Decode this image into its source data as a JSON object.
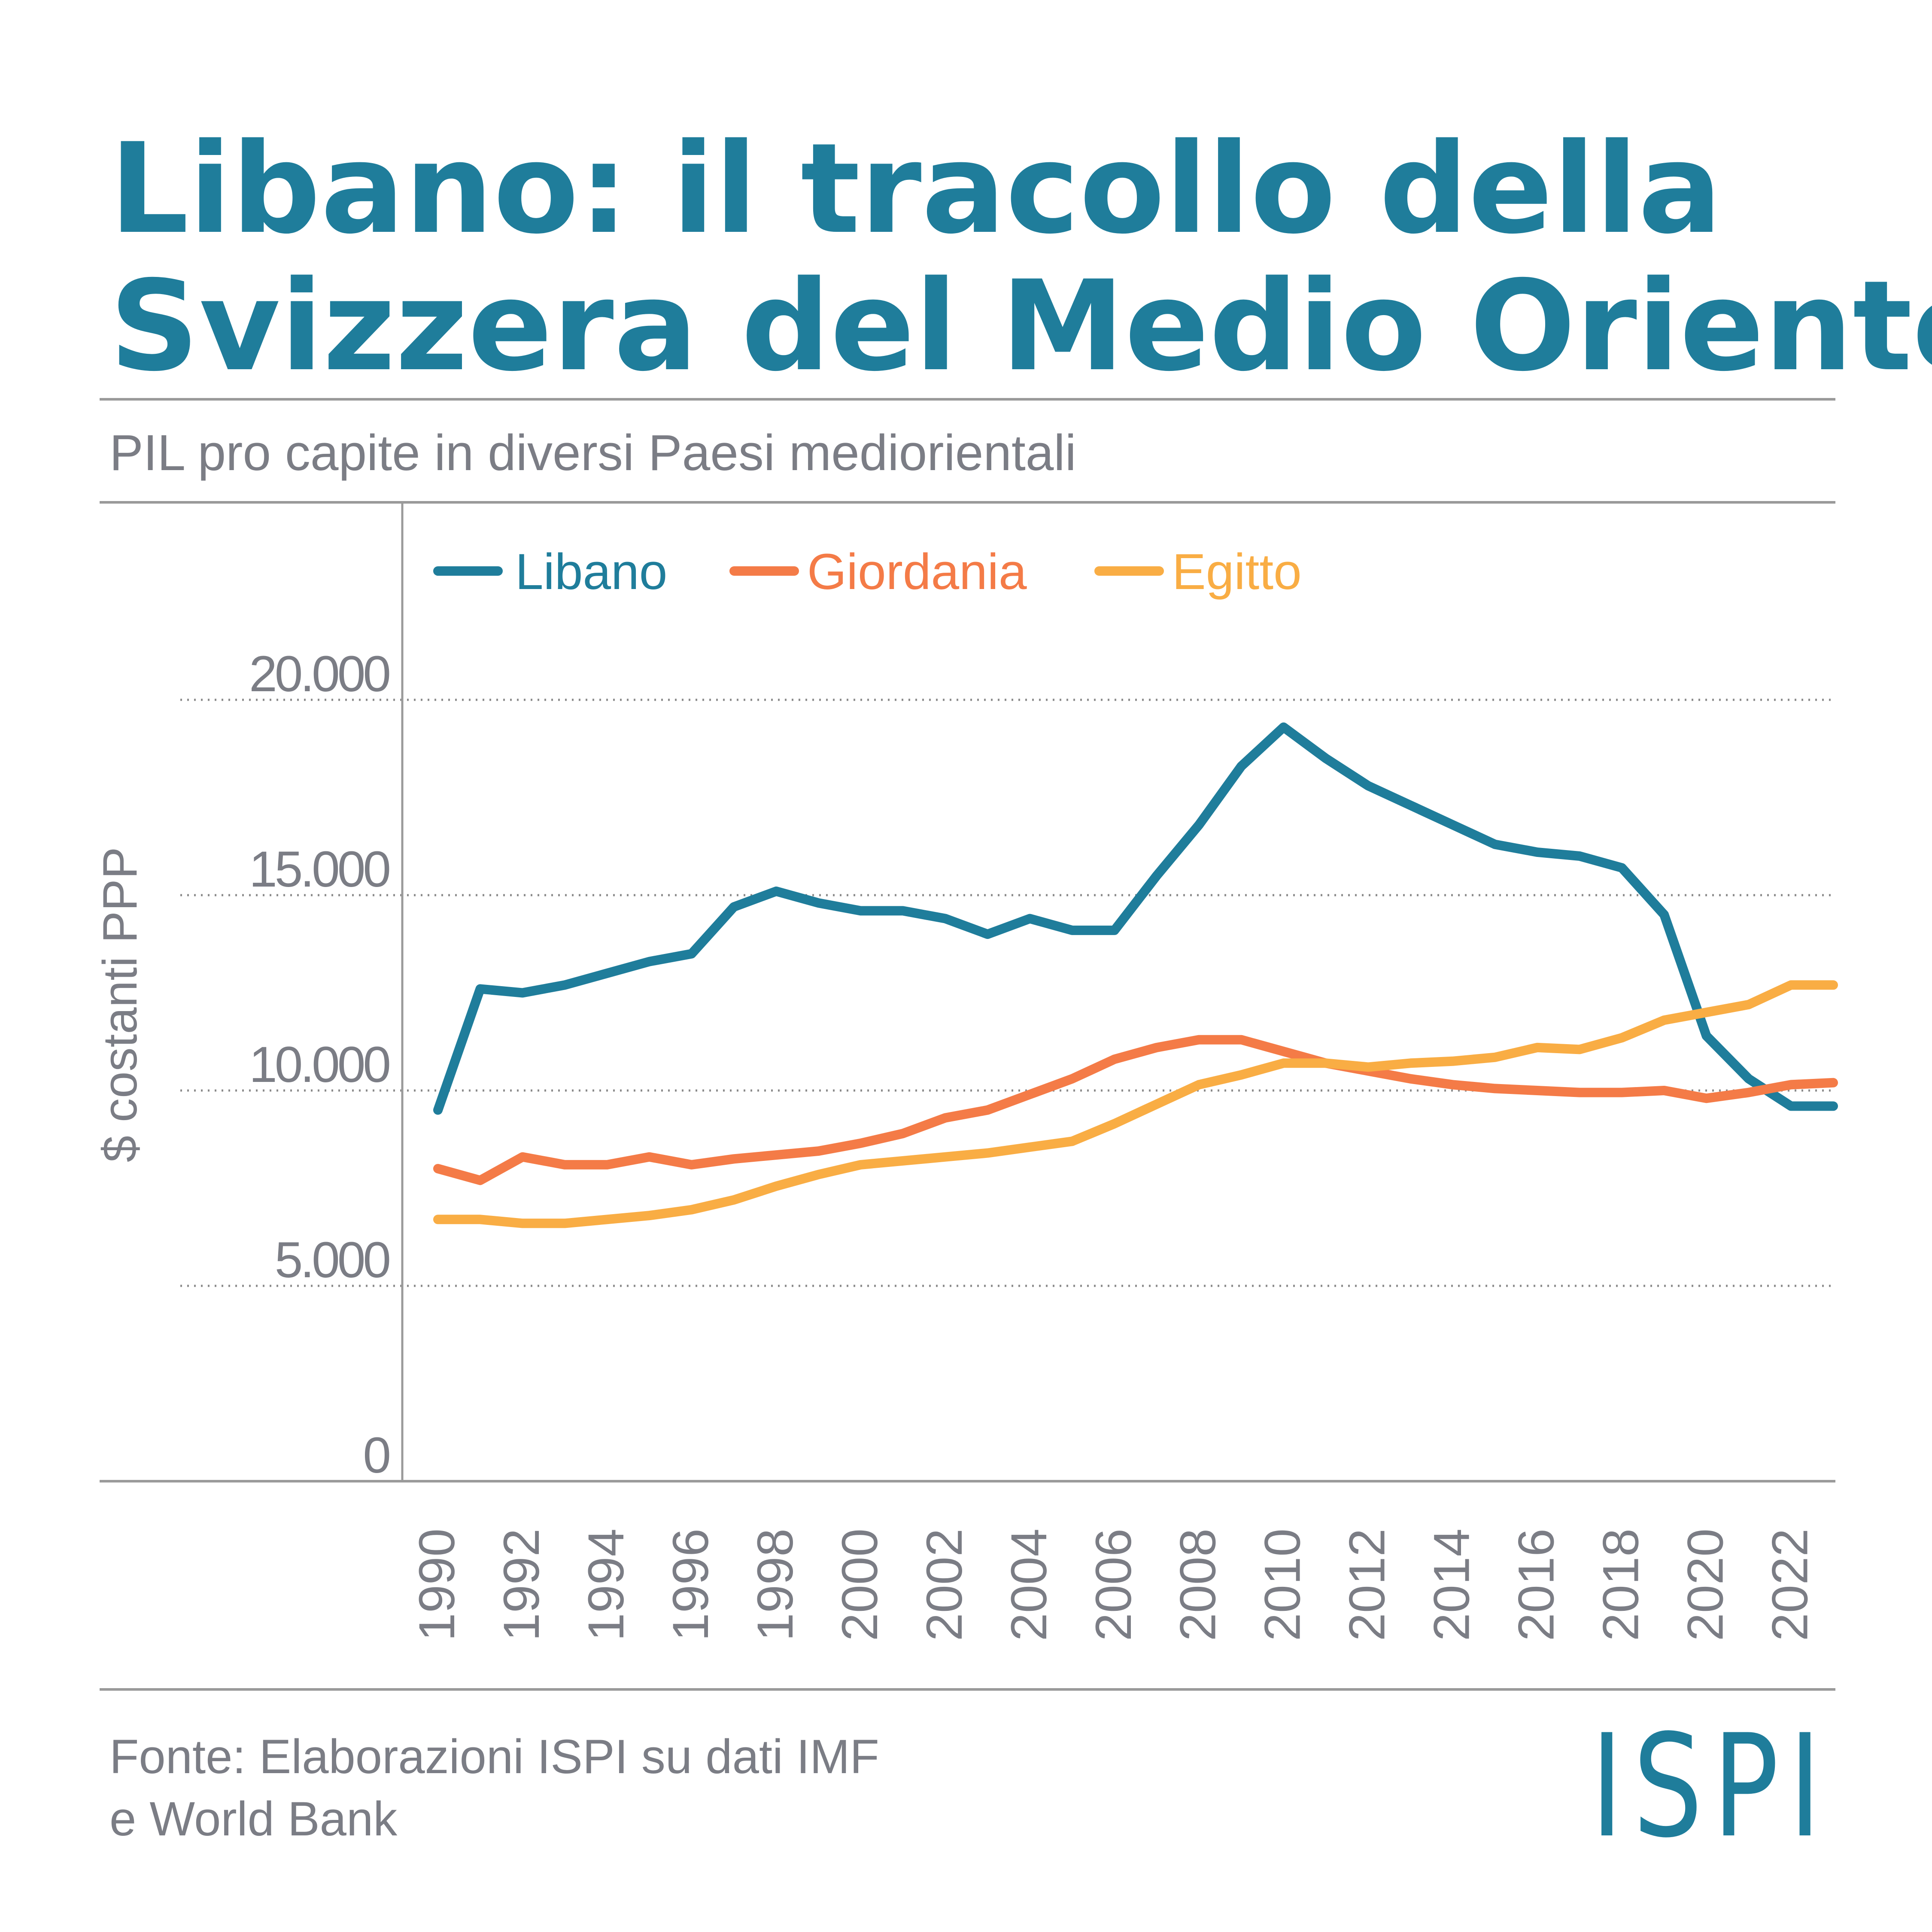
{
  "title_line1": "Libano: il tracollo della",
  "title_line2": "Svizzera del Medio Oriente",
  "subtitle": "PIL pro capite in diversi Paesi mediorientali",
  "source_line1": "Fonte: Elaborazioni ISPI su dati IMF",
  "source_line2": "e World Bank",
  "logo": "ISPI",
  "colors": {
    "title": "#1f7d9b",
    "text": "#7b7d85",
    "rule": "#9a9a9a",
    "grid": "#8a8a8a"
  },
  "chart_data": {
    "type": "line",
    "title": "PIL pro capite in diversi Paesi mediorientali",
    "xlabel": "",
    "ylabel": "$ costanti PPP",
    "ylim": [
      0,
      20000
    ],
    "xlim": [
      1990,
      2023
    ],
    "y_ticks": [
      0,
      5000,
      10000,
      15000,
      20000
    ],
    "y_tick_labels": [
      "0",
      "5.000",
      "10.000",
      "15.000",
      "20.000"
    ],
    "x_ticks": [
      1990,
      1992,
      1994,
      1996,
      1998,
      2000,
      2002,
      2004,
      2006,
      2008,
      2010,
      2012,
      2014,
      2016,
      2018,
      2020,
      2022
    ],
    "x_tick_labels": [
      "1990",
      "1992",
      "1994",
      "1996",
      "1998",
      "2000",
      "2002",
      "2004",
      "2006",
      "2008",
      "2010",
      "2012",
      "2014",
      "2016",
      "2018",
      "2020",
      "2022"
    ],
    "grid": "dotted horizontal",
    "legend_position": "top-left",
    "x": [
      1990,
      1991,
      1992,
      1993,
      1994,
      1995,
      1996,
      1997,
      1998,
      1999,
      2000,
      2001,
      2002,
      2003,
      2004,
      2005,
      2006,
      2007,
      2008,
      2009,
      2010,
      2011,
      2012,
      2013,
      2014,
      2015,
      2016,
      2017,
      2018,
      2019,
      2020,
      2021,
      2022,
      2023
    ],
    "series": [
      {
        "name": "Libano",
        "color": "#1f7d9b",
        "values": [
          9500,
          12600,
          12500,
          12700,
          13000,
          13300,
          13500,
          14700,
          15100,
          14800,
          14600,
          14600,
          14400,
          14000,
          14400,
          14100,
          14100,
          15500,
          16800,
          18300,
          19300,
          18500,
          17800,
          17300,
          16800,
          16300,
          16100,
          16000,
          15700,
          14500,
          11400,
          10300,
          9600,
          9600
        ]
      },
      {
        "name": "Giordania",
        "color": "#f47b47",
        "values": [
          8000,
          7700,
          8300,
          8100,
          8100,
          8300,
          8100,
          8250,
          8350,
          8450,
          8650,
          8900,
          9300,
          9500,
          9900,
          10300,
          10800,
          11100,
          11300,
          11300,
          11000,
          10700,
          10500,
          10300,
          10150,
          10050,
          10000,
          9950,
          9950,
          10000,
          9800,
          9950,
          10150,
          10200
        ]
      },
      {
        "name": "Egitto",
        "color": "#f9ad44",
        "values": [
          6700,
          6700,
          6600,
          6600,
          6700,
          6800,
          6950,
          7200,
          7550,
          7850,
          8100,
          8200,
          8300,
          8400,
          8550,
          8700,
          9150,
          9650,
          10150,
          10400,
          10700,
          10700,
          10600,
          10700,
          10750,
          10850,
          11100,
          11050,
          11350,
          11800,
          12000,
          12200,
          12700,
          12700
        ]
      }
    ]
  }
}
